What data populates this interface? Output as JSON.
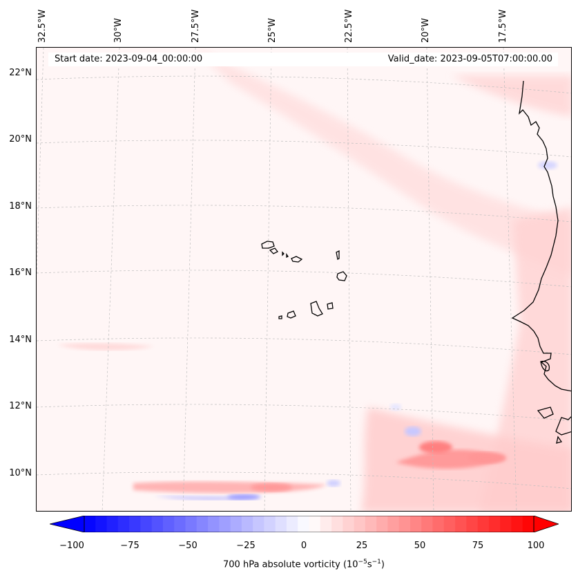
{
  "map": {
    "start_date": "Start date: 2023-09-04_00:00:00",
    "valid_date": "Valid_date: 2023-09-05T07:00:00.00",
    "lat_labels": [
      "22°N",
      "20°N",
      "18°N",
      "16°N",
      "14°N",
      "12°N",
      "10°N"
    ],
    "lon_labels": [
      "32.5°W",
      "30°W",
      "27.5°W",
      "25°W",
      "22.5°W",
      "20°W",
      "17.5°W"
    ],
    "features": [
      "coastline-west-africa",
      "cape-verde-islands"
    ]
  },
  "colorbar": {
    "min": -100,
    "max": 100,
    "ticks": [
      "−100",
      "−75",
      "−50",
      "−25",
      "0",
      "25",
      "50",
      "75",
      "100"
    ],
    "label_main": "700 hPa absolute vorticity (10",
    "label_exp1": "−5",
    "label_mid": "s",
    "label_exp2": "−1",
    "label_end": ")",
    "color_low": "#0000ff",
    "color_mid": "#ffffff",
    "color_high": "#ff0000"
  }
}
